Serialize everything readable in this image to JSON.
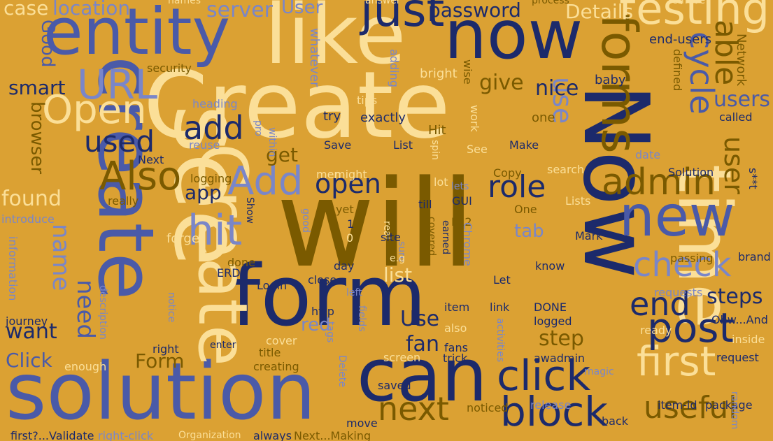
{
  "colors": {
    "background": "#DBA133",
    "navy": "#1C2A6B",
    "blue": "#4A5AA8",
    "periwinkle": "#7A86C8",
    "cream": "#FBDF98",
    "olive": "#7A5A00"
  },
  "words": [
    {
      "text": "Create",
      "color": "cream"
    },
    {
      "text": "will",
      "color": "olive"
    },
    {
      "text": "form",
      "color": "navy"
    },
    {
      "text": "like",
      "color": "cream"
    },
    {
      "text": "now",
      "color": "navy"
    },
    {
      "text": "Now",
      "color": "navy"
    },
    {
      "text": "see",
      "color": "cream"
    },
    {
      "text": "solution",
      "color": "blue"
    },
    {
      "text": "can",
      "color": "navy"
    },
    {
      "text": "entity",
      "color": "blue"
    },
    {
      "text": "create",
      "color": "blue"
    },
    {
      "text": "Create",
      "color": "cream"
    },
    {
      "text": "time",
      "color": "cream"
    },
    {
      "text": "new",
      "color": "blue"
    },
    {
      "text": "just",
      "color": "navy"
    },
    {
      "text": "testing",
      "color": "cream"
    },
    {
      "text": "first",
      "color": "cream"
    },
    {
      "text": "block",
      "color": "navy"
    },
    {
      "text": "click",
      "color": "navy"
    },
    {
      "text": "post",
      "color": "navy"
    },
    {
      "text": "forms",
      "color": "olive"
    },
    {
      "text": "admin",
      "color": "olive"
    },
    {
      "text": "Also",
      "color": "olive"
    },
    {
      "text": "hit",
      "color": "periwinkle"
    },
    {
      "text": "Add",
      "color": "periwinkle"
    },
    {
      "text": "URL",
      "color": "periwinkle"
    },
    {
      "text": "Open",
      "color": "cream"
    },
    {
      "text": "check",
      "color": "periwinkle"
    },
    {
      "text": "end",
      "color": "navy"
    },
    {
      "text": "useful",
      "color": "olive"
    },
    {
      "text": "next",
      "color": "olive"
    },
    {
      "text": "open",
      "color": "navy"
    },
    {
      "text": "role",
      "color": "navy"
    },
    {
      "text": "add",
      "color": "navy"
    },
    {
      "text": "used",
      "color": "navy"
    },
    {
      "text": "cycle",
      "color": "blue"
    },
    {
      "text": "able",
      "color": "olive"
    },
    {
      "text": "user",
      "color": "olive"
    },
    {
      "text": "use",
      "color": "periwinkle"
    },
    {
      "text": "users",
      "color": "blue"
    },
    {
      "text": "name",
      "color": "periwinkle"
    },
    {
      "text": "need",
      "color": "blue"
    },
    {
      "text": "password",
      "color": "navy"
    },
    {
      "text": "Details",
      "color": "cream"
    },
    {
      "text": "give",
      "color": "olive"
    },
    {
      "text": "nice",
      "color": "navy"
    },
    {
      "text": "steps",
      "color": "navy"
    },
    {
      "text": "step",
      "color": "olive"
    },
    {
      "text": "fan",
      "color": "navy"
    },
    {
      "text": "Use",
      "color": "navy"
    },
    {
      "text": "red",
      "color": "periwinkle"
    },
    {
      "text": "tab",
      "color": "periwinkle"
    },
    {
      "text": "get",
      "color": "olive"
    },
    {
      "text": "app",
      "color": "navy"
    },
    {
      "text": "list",
      "color": "cream"
    },
    {
      "text": "found",
      "color": "cream"
    },
    {
      "text": "want",
      "color": "navy"
    },
    {
      "text": "Click",
      "color": "blue"
    },
    {
      "text": "Form",
      "color": "olive"
    },
    {
      "text": "smart",
      "color": "navy"
    },
    {
      "text": "browser",
      "color": "olive"
    },
    {
      "text": "server",
      "color": "periwinkle"
    },
    {
      "text": "location",
      "color": "periwinkle"
    },
    {
      "text": "case",
      "color": "cream"
    },
    {
      "text": "User",
      "color": "periwinkle"
    },
    {
      "text": "Good",
      "color": "blue"
    },
    {
      "text": "end-users",
      "color": "navy"
    },
    {
      "text": "Network",
      "color": "olive"
    },
    {
      "text": "security",
      "color": "olive"
    },
    {
      "text": "whatever",
      "color": "periwinkle"
    },
    {
      "text": "adding",
      "color": "periwinkle"
    },
    {
      "text": "bright",
      "color": "cream"
    },
    {
      "text": "wise",
      "color": "olive"
    },
    {
      "text": "defined",
      "color": "olive"
    },
    {
      "text": "baby",
      "color": "navy"
    },
    {
      "text": "tips",
      "color": "cream"
    },
    {
      "text": "heading",
      "color": "periwinkle"
    },
    {
      "text": "try",
      "color": "navy"
    },
    {
      "text": "exactly",
      "color": "navy"
    },
    {
      "text": "one",
      "color": "olive"
    },
    {
      "text": "called",
      "color": "navy"
    },
    {
      "text": "Hit",
      "color": "olive"
    },
    {
      "text": "work",
      "color": "cream"
    },
    {
      "text": "Save",
      "color": "navy"
    },
    {
      "text": "List",
      "color": "navy"
    },
    {
      "text": "Make",
      "color": "navy"
    },
    {
      "text": "pro",
      "color": "periwinkle"
    },
    {
      "text": "within",
      "color": "periwinkle"
    },
    {
      "text": "reuse",
      "color": "periwinkle"
    },
    {
      "text": "spin",
      "color": "cream"
    },
    {
      "text": "See",
      "color": "cream"
    },
    {
      "text": "date",
      "color": "periwinkle"
    },
    {
      "text": "Next",
      "color": "navy"
    },
    {
      "text": "logging",
      "color": "olive"
    },
    {
      "text": "men",
      "color": "cream"
    },
    {
      "text": "might",
      "color": "cream"
    },
    {
      "text": "Copy",
      "color": "olive"
    },
    {
      "text": "search",
      "color": "cream"
    },
    {
      "text": "Solution",
      "color": "navy"
    },
    {
      "text": "s**t",
      "color": "navy"
    },
    {
      "text": "lot",
      "color": "cream"
    },
    {
      "text": "lets",
      "color": "periwinkle"
    },
    {
      "text": "GUI",
      "color": "navy"
    },
    {
      "text": "till",
      "color": "navy"
    },
    {
      "text": "Lists",
      "color": "cream"
    },
    {
      "text": "One",
      "color": "olive"
    },
    {
      "text": "really",
      "color": "olive"
    },
    {
      "text": "Show",
      "color": "navy"
    },
    {
      "text": "yet",
      "color": "olive"
    },
    {
      "text": "introduce",
      "color": "periwinkle"
    },
    {
      "text": "good",
      "color": "periwinkle"
    },
    {
      "text": "1",
      "color": "navy"
    },
    {
      "text": "0",
      "color": "cream"
    },
    {
      "text": "real",
      "color": "cream"
    },
    {
      "text": "F12",
      "color": "olive"
    },
    {
      "text": "site",
      "color": "navy"
    },
    {
      "text": "forget",
      "color": "cream"
    },
    {
      "text": "covered",
      "color": "olive"
    },
    {
      "text": "Chrome",
      "color": "periwinkle"
    },
    {
      "text": "Mark",
      "color": "navy"
    },
    {
      "text": "sure",
      "color": "periwinkle"
    },
    {
      "text": "e.g",
      "color": "cream"
    },
    {
      "text": "done",
      "color": "olive"
    },
    {
      "text": "passing",
      "color": "olive"
    },
    {
      "text": "brand",
      "color": "navy"
    },
    {
      "text": "information",
      "color": "periwinkle"
    },
    {
      "text": "ERD",
      "color": "navy"
    },
    {
      "text": "day",
      "color": "navy"
    },
    {
      "text": "earned",
      "color": "navy"
    },
    {
      "text": "know",
      "color": "navy"
    },
    {
      "text": "Login",
      "color": "navy"
    },
    {
      "text": "close",
      "color": "navy"
    },
    {
      "text": "Let",
      "color": "navy"
    },
    {
      "text": "requests",
      "color": "periwinkle"
    },
    {
      "text": "left",
      "color": "periwinkle"
    },
    {
      "text": "notice",
      "color": "periwinkle"
    },
    {
      "text": "description",
      "color": "periwinkle"
    },
    {
      "text": "http",
      "color": "navy"
    },
    {
      "text": "item",
      "color": "navy"
    },
    {
      "text": "link",
      "color": "navy"
    },
    {
      "text": "DONE",
      "color": "navy"
    },
    {
      "text": "journey",
      "color": "navy"
    },
    {
      "text": "fields",
      "color": "periwinkle"
    },
    {
      "text": "logged",
      "color": "navy"
    },
    {
      "text": "Ohw...And",
      "color": "navy"
    },
    {
      "text": "tags",
      "color": "periwinkle"
    },
    {
      "text": "also",
      "color": "cream"
    },
    {
      "text": "ready",
      "color": "cream"
    },
    {
      "text": "fans",
      "color": "navy"
    },
    {
      "text": "activities",
      "color": "periwinkle"
    },
    {
      "text": "cover",
      "color": "cream"
    },
    {
      "text": "inside",
      "color": "cream"
    },
    {
      "text": "right",
      "color": "navy"
    },
    {
      "text": "enter",
      "color": "navy"
    },
    {
      "text": "Delete",
      "color": "periwinkle"
    },
    {
      "text": "trick",
      "color": "navy"
    },
    {
      "text": "awadmin",
      "color": "navy"
    },
    {
      "text": "title",
      "color": "olive"
    },
    {
      "text": "request",
      "color": "navy"
    },
    {
      "text": "enough",
      "color": "cream"
    },
    {
      "text": "creating",
      "color": "olive"
    },
    {
      "text": "screen",
      "color": "cream"
    },
    {
      "text": "magic",
      "color": "periwinkle"
    },
    {
      "text": "saved",
      "color": "navy"
    },
    {
      "text": "release",
      "color": "periwinkle"
    },
    {
      "text": "item-id",
      "color": "navy"
    },
    {
      "text": "package",
      "color": "navy"
    },
    {
      "text": "noticed",
      "color": "olive"
    },
    {
      "text": "move",
      "color": "navy"
    },
    {
      "text": "back",
      "color": "navy"
    },
    {
      "text": "random",
      "color": "periwinkle"
    },
    {
      "text": "first?...Validate",
      "color": "navy"
    },
    {
      "text": "right-click",
      "color": "periwinkle"
    },
    {
      "text": "Organization",
      "color": "cream"
    },
    {
      "text": "always",
      "color": "navy"
    },
    {
      "text": "Next...Making",
      "color": "olive"
    },
    {
      "text": "names",
      "color": "cream"
    },
    {
      "text": "answer",
      "color": "cream"
    },
    {
      "text": "process",
      "color": "olive"
    },
    {
      "text": "remove",
      "color": "cream"
    }
  ]
}
